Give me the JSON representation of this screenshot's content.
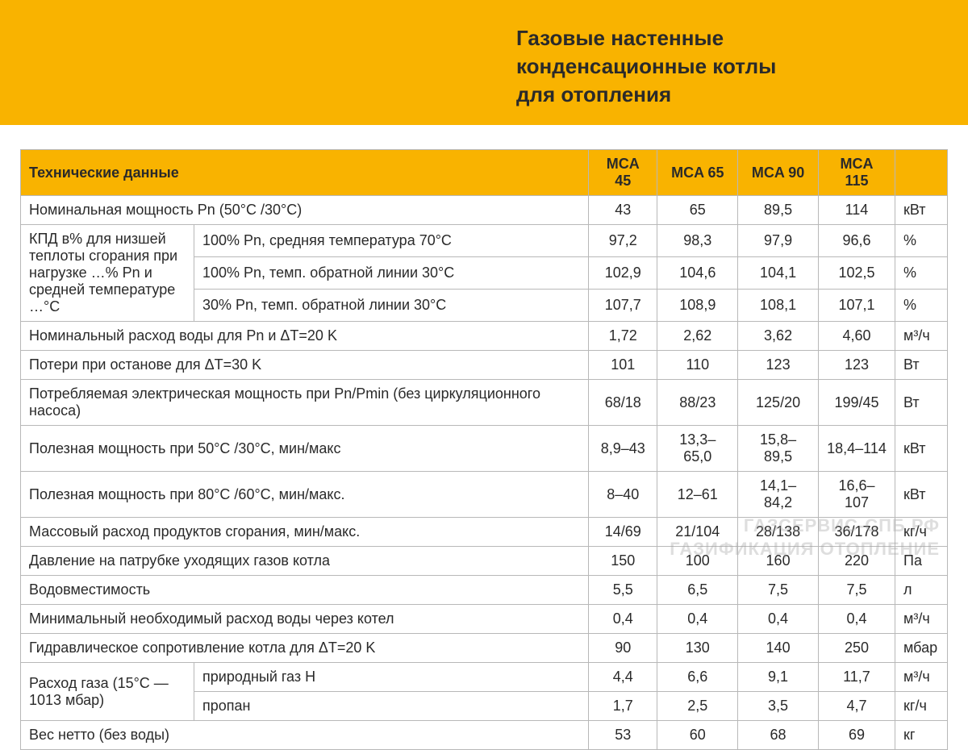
{
  "colors": {
    "accent": "#f9b300",
    "text": "#2a2a2a",
    "border": "#b8b8b8",
    "background": "#ffffff",
    "watermark": "rgba(160,160,160,0.35)"
  },
  "typography": {
    "title_fontsize": 26,
    "title_weight": "bold",
    "body_fontsize": 18,
    "font_family": "Arial"
  },
  "header": {
    "title_line1": "Газовые настенные",
    "title_line2": "конденсационные котлы",
    "title_line3": "для отопления"
  },
  "table": {
    "header": {
      "label": "Технические данные",
      "models": [
        "MCA 45",
        "MCA 65",
        "MCA 90",
        "MCA 115"
      ]
    },
    "rows": [
      {
        "label": "Номинальная мощность Pn (50°C /30°C)",
        "values": [
          "43",
          "65",
          "89,5",
          "114"
        ],
        "unit": "кВт"
      },
      {
        "group_label": "КПД в% для низшей теплоты сгорания при нагрузке …% Pn и средней температуре …°C",
        "subrows": [
          {
            "sub": "100% Pn, средняя температура 70°С",
            "values": [
              "97,2",
              "98,3",
              "97,9",
              "96,6"
            ],
            "unit": "%"
          },
          {
            "sub": "100% Pn, темп. обратной линии 30°С",
            "values": [
              "102,9",
              "104,6",
              "104,1",
              "102,5"
            ],
            "unit": "%"
          },
          {
            "sub": "30% Pn, темп. обратной линии 30°С",
            "values": [
              "107,7",
              "108,9",
              "108,1",
              "107,1"
            ],
            "unit": "%"
          }
        ]
      },
      {
        "label": "Номинальный расход воды для Pn и ΔT=20 K",
        "values": [
          "1,72",
          "2,62",
          "3,62",
          "4,60"
        ],
        "unit": "м³/ч"
      },
      {
        "label": "Потери при останове для ΔT=30 K",
        "values": [
          "101",
          "110",
          "123",
          "123"
        ],
        "unit": "Вт"
      },
      {
        "label": "Потребляемая электрическая мощность при Pn/Pmin (без циркуляционного насоса)",
        "values": [
          "68/18",
          "88/23",
          "125/20",
          "199/45"
        ],
        "unit": "Вт"
      },
      {
        "label": "Полезная мощность при 50°С /30°С, мин/макс",
        "values": [
          "8,9–43",
          "13,3–65,0",
          "15,8–89,5",
          "18,4–114"
        ],
        "unit": "кВт"
      },
      {
        "label": "Полезная мощность при 80°С /60°С, мин/макс.",
        "values": [
          "8–40",
          "12–61",
          "14,1–84,2",
          "16,6–107"
        ],
        "unit": "кВт"
      },
      {
        "label": "Массовый расход продуктов сгорания, мин/макс.",
        "values": [
          "14/69",
          "21/104",
          "28/138",
          "36/178"
        ],
        "unit": "кг/ч"
      },
      {
        "label": "Давление на патрубке уходящих газов котла",
        "values": [
          "150",
          "100",
          "160",
          "220"
        ],
        "unit": "Па"
      },
      {
        "label": "Водовместимость",
        "values": [
          "5,5",
          "6,5",
          "7,5",
          "7,5"
        ],
        "unit": "л"
      },
      {
        "label": "Минимальный необходимый расход воды через котел",
        "values": [
          "0,4",
          "0,4",
          "0,4",
          "0,4"
        ],
        "unit": "м³/ч"
      },
      {
        "label": "Гидравлическое сопротивление котла для ΔT=20 K",
        "values": [
          "90",
          "130",
          "140",
          "250"
        ],
        "unit": "мбар"
      },
      {
        "group_label": "Расход газа (15°С — 1013 мбар)",
        "subrows": [
          {
            "sub": "природный газ Н",
            "values": [
              "4,4",
              "6,6",
              "9,1",
              "11,7"
            ],
            "unit": "м³/ч"
          },
          {
            "sub": "пропан",
            "values": [
              "1,7",
              "2,5",
              "3,5",
              "4,7"
            ],
            "unit": "кг/ч"
          }
        ]
      },
      {
        "label": "Вес нетто (без воды)",
        "values": [
          "53",
          "60",
          "68",
          "69"
        ],
        "unit": "кг"
      }
    ]
  },
  "watermark": {
    "line1": "ГАЗСЕРВИС-СПБ.РФ",
    "line2": "ГАЗИФИКАЦИЯ ОТОПЛЕНИЕ"
  }
}
